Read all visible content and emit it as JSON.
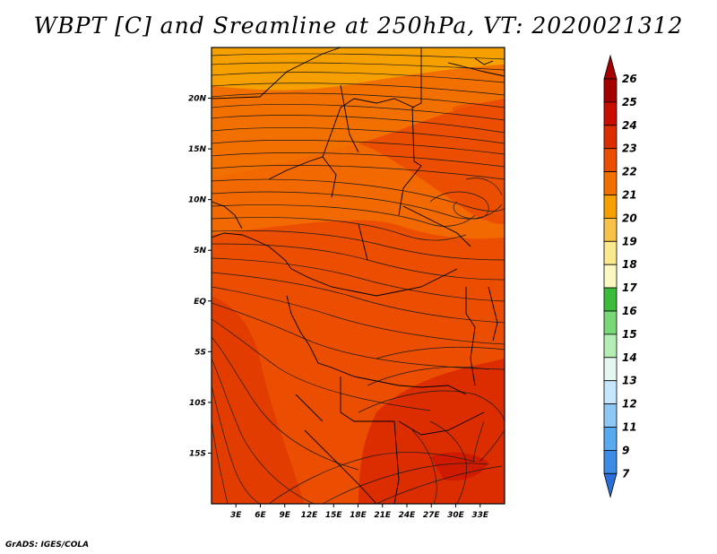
{
  "title": "WBPT [C] and Sreamline at 250hPa, VT: 2020021312",
  "credit": "GrADS: IGES/COLA",
  "map": {
    "lon_range": [
      0,
      36
    ],
    "lat_range": [
      -20,
      25
    ],
    "lon_ticks": [
      "3E",
      "6E",
      "9E",
      "12E",
      "15E",
      "18E",
      "21E",
      "24E",
      "27E",
      "30E",
      "33E"
    ],
    "lat_ticks": [
      "20N",
      "15N",
      "10N",
      "5N",
      "EQ",
      "5S",
      "10S",
      "15S"
    ]
  },
  "colorbar": {
    "labels": [
      "26",
      "25",
      "24",
      "23",
      "22",
      "21",
      "20",
      "19",
      "18",
      "17",
      "16",
      "15",
      "14",
      "13",
      "12",
      "11",
      "9",
      "7"
    ],
    "colors": [
      "#a50000",
      "#c80e00",
      "#dc2d00",
      "#eb4e00",
      "#f27000",
      "#f6a000",
      "#f8c248",
      "#fbe98d",
      "#fbf9c0",
      "#3cbc3c",
      "#78d878",
      "#b4eeb4",
      "#e6f7f2",
      "#c6e6fb",
      "#90c8f5",
      "#5aaaf0",
      "#3c8ce6",
      "#2a6fd8"
    ],
    "top_arrow_color": "#a50000",
    "bottom_arrow_color": "#2a6fd8"
  }
}
